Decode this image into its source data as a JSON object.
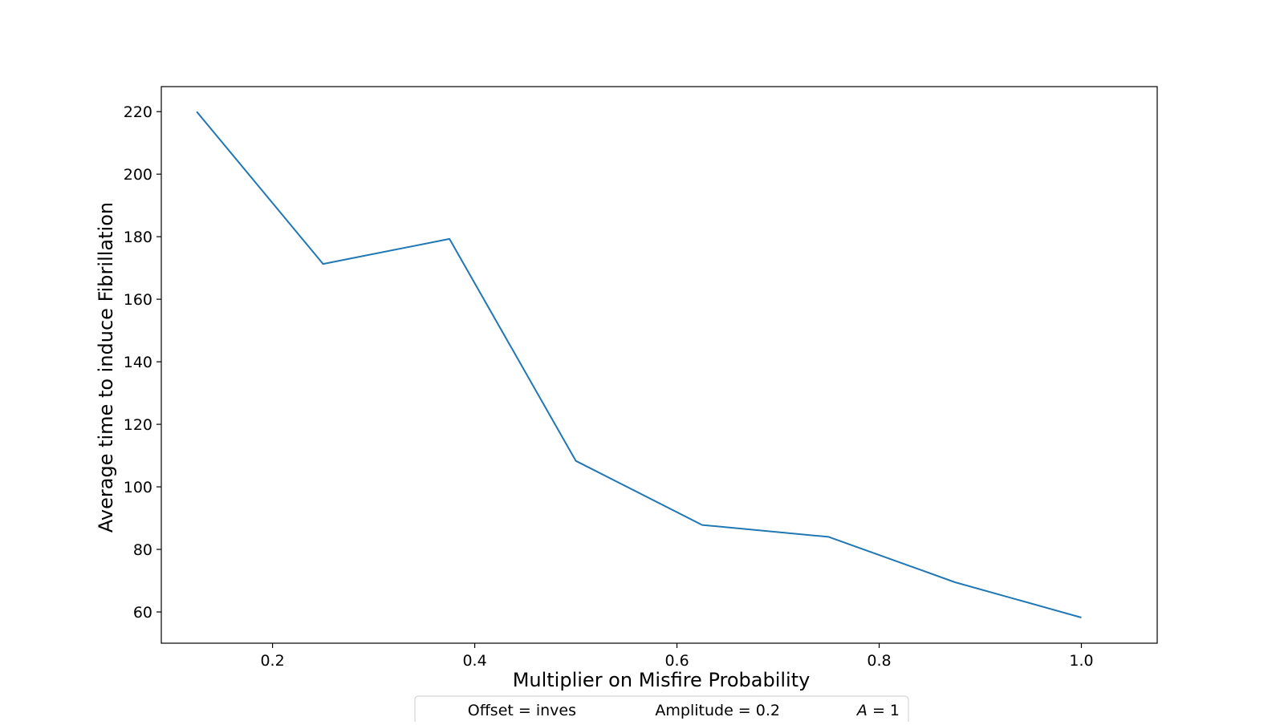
{
  "chart_data": {
    "type": "line",
    "title": "",
    "xlabel": "Multiplier on Misfire Probability",
    "ylabel": "Average time to induce Fibrillation",
    "xlim": [
      0.09,
      1.075
    ],
    "ylim": [
      50,
      228
    ],
    "x_ticks": [
      0.2,
      0.4,
      0.6,
      0.8,
      1.0
    ],
    "x_tick_labels": [
      "0.2",
      "0.4",
      "0.6",
      "0.8",
      "1.0"
    ],
    "y_ticks": [
      60,
      80,
      100,
      120,
      140,
      160,
      180,
      200,
      220
    ],
    "y_tick_labels": [
      "60",
      "80",
      "100",
      "120",
      "140",
      "160",
      "180",
      "200",
      "220"
    ],
    "grid": false,
    "series": [
      {
        "color": "#1f77b4",
        "x": [
          0.125,
          0.25,
          0.375,
          0.5,
          0.625,
          0.75,
          0.875,
          1.0
        ],
        "y": [
          220,
          171.3,
          179.3,
          108.3,
          87.8,
          84.0,
          69.5,
          58.2
        ]
      }
    ],
    "legend": {
      "location": "bottom-center",
      "entries": [
        {
          "prefix": "",
          "italic": "",
          "text": "Offset = inves"
        },
        {
          "prefix": "",
          "italic": "",
          "text": "Amplitude = 0.2"
        },
        {
          "prefix": "",
          "italic": "A",
          "text": " = 1"
        }
      ]
    }
  }
}
